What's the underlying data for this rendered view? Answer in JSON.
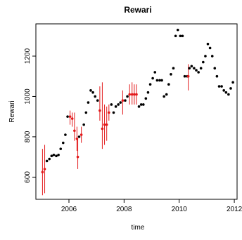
{
  "chart_data": {
    "type": "scatter",
    "title": "Rewari",
    "xlabel": "time",
    "ylabel": "Rewari",
    "xlim": [
      2004.8,
      2012.1
    ],
    "ylim": [
      490,
      1360
    ],
    "xticks": [
      2006,
      2008,
      2010,
      2012
    ],
    "yticks": [
      600,
      800,
      1000,
      1200
    ],
    "xtick_labels": [
      "2006",
      "2008",
      "2010",
      "2012"
    ],
    "ytick_labels": [
      "600",
      "800",
      "1000",
      "1200"
    ],
    "grid": false,
    "legend": "none",
    "colors": {
      "observed": "#000000",
      "imputed": "#e31a1c"
    },
    "series": [
      {
        "points": [
          [
            2005.2,
            680
          ],
          [
            2005.29,
            690
          ],
          [
            2005.37,
            705
          ],
          [
            2005.45,
            710
          ],
          [
            2005.54,
            705
          ],
          [
            2005.62,
            710
          ],
          [
            2005.7,
            740
          ],
          [
            2005.79,
            770
          ],
          [
            2005.87,
            810
          ],
          [
            2005.95,
            900
          ],
          [
            2006.37,
            800
          ],
          [
            2006.54,
            860
          ],
          [
            2006.62,
            920
          ],
          [
            2006.7,
            970
          ],
          [
            2006.79,
            1030
          ],
          [
            2006.87,
            1020
          ],
          [
            2006.95,
            1000
          ],
          [
            2007.04,
            980
          ],
          [
            2007.54,
            960
          ],
          [
            2007.62,
            920
          ],
          [
            2007.7,
            950
          ],
          [
            2007.79,
            960
          ],
          [
            2007.87,
            970
          ],
          [
            2008.04,
            980
          ],
          [
            2008.12,
            1000
          ],
          [
            2008.54,
            950
          ],
          [
            2008.62,
            960
          ],
          [
            2008.7,
            960
          ],
          [
            2008.79,
            990
          ],
          [
            2008.87,
            1020
          ],
          [
            2008.95,
            1060
          ],
          [
            2009.04,
            1090
          ],
          [
            2009.12,
            1120
          ],
          [
            2009.2,
            1080
          ],
          [
            2009.29,
            1080
          ],
          [
            2009.37,
            1080
          ],
          [
            2009.45,
            1000
          ],
          [
            2009.54,
            1010
          ],
          [
            2009.62,
            1060
          ],
          [
            2009.7,
            1110
          ],
          [
            2009.79,
            1140
          ],
          [
            2009.87,
            1300
          ],
          [
            2009.95,
            1330
          ],
          [
            2010.04,
            1300
          ],
          [
            2010.12,
            1300
          ],
          [
            2010.2,
            1100
          ],
          [
            2010.29,
            1100
          ],
          [
            2010.37,
            1140
          ],
          [
            2010.45,
            1150
          ],
          [
            2010.54,
            1140
          ],
          [
            2010.62,
            1130
          ],
          [
            2010.7,
            1120
          ],
          [
            2010.79,
            1140
          ],
          [
            2010.87,
            1170
          ],
          [
            2010.95,
            1200
          ],
          [
            2011.04,
            1260
          ],
          [
            2011.12,
            1240
          ],
          [
            2011.2,
            1200
          ],
          [
            2011.29,
            1140
          ],
          [
            2011.37,
            1100
          ],
          [
            2011.45,
            1050
          ],
          [
            2011.54,
            1050
          ],
          [
            2011.62,
            1030
          ],
          [
            2011.7,
            1020
          ],
          [
            2011.79,
            1010
          ],
          [
            2011.87,
            1040
          ],
          [
            2011.95,
            1070
          ]
        ]
      },
      {
        "points": [
          {
            "x": 2005.04,
            "y": 625,
            "lo": 510,
            "hi": 740
          },
          {
            "x": 2005.12,
            "y": 640,
            "lo": 520,
            "hi": 760
          },
          {
            "x": 2006.04,
            "y": 900,
            "lo": 860,
            "hi": 930
          },
          {
            "x": 2006.12,
            "y": 890,
            "lo": 850,
            "hi": 920
          },
          {
            "x": 2006.2,
            "y": 830,
            "lo": 780,
            "hi": 920
          },
          {
            "x": 2006.29,
            "y": 790,
            "lo": 730,
            "hi": 850
          },
          {
            "x": 2006.32,
            "y": 700,
            "lo": 640,
            "hi": 790
          },
          {
            "x": 2006.45,
            "y": 810,
            "lo": 770,
            "hi": 850
          },
          {
            "x": 2007.12,
            "y": 930,
            "lo": 880,
            "hi": 1050
          },
          {
            "x": 2007.21,
            "y": 840,
            "lo": 740,
            "hi": 1070
          },
          {
            "x": 2007.29,
            "y": 860,
            "lo": 760,
            "hi": 960
          },
          {
            "x": 2007.37,
            "y": 860,
            "lo": 780,
            "hi": 950
          },
          {
            "x": 2007.45,
            "y": 920,
            "lo": 880,
            "hi": 960
          },
          {
            "x": 2007.95,
            "y": 980,
            "lo": 910,
            "hi": 1030
          },
          {
            "x": 2008.2,
            "y": 1010,
            "lo": 960,
            "hi": 1060
          },
          {
            "x": 2008.29,
            "y": 1010,
            "lo": 960,
            "hi": 1070
          },
          {
            "x": 2008.37,
            "y": 1010,
            "lo": 960,
            "hi": 1060
          },
          {
            "x": 2008.45,
            "y": 1010,
            "lo": 960,
            "hi": 1060
          },
          {
            "x": 2010.33,
            "y": 1100,
            "lo": 1030,
            "hi": 1160
          }
        ]
      }
    ]
  }
}
